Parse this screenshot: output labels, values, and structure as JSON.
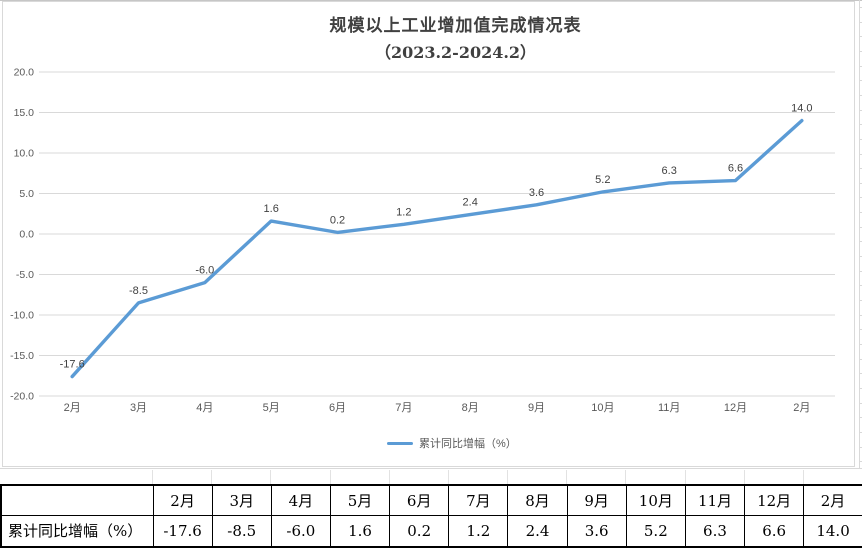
{
  "chart_data": {
    "type": "line",
    "title": "规模以上工业增加值完成情况表",
    "subtitle": "（2023.2-2024.2）",
    "categories": [
      "2月",
      "3月",
      "4月",
      "5月",
      "6月",
      "7月",
      "8月",
      "9月",
      "10月",
      "11月",
      "12月",
      "2月"
    ],
    "series": [
      {
        "name": "累计同比增幅（%）",
        "values": [
          -17.6,
          -8.5,
          -6.0,
          1.6,
          0.2,
          1.2,
          2.4,
          3.6,
          5.2,
          6.3,
          6.6,
          14.0
        ]
      }
    ],
    "data_labels": [
      "-17.6",
      "-8.5",
      "-6.0",
      "1.6",
      "0.2",
      "1.2",
      "2.4",
      "3.6",
      "5.2",
      "6.3",
      "6.6",
      "14.0"
    ],
    "ylim": [
      -20,
      20
    ],
    "ytick_step": 5,
    "y_ticks": [
      "20.0",
      "15.0",
      "10.0",
      "5.0",
      "0.0",
      "-5.0",
      "-10.0",
      "-15.0",
      "-20.0"
    ],
    "xlabel": "",
    "ylabel": "",
    "grid": true,
    "legend_position": "bottom",
    "line_color": "#5B9BD5",
    "gridline_color": "#D9D9D9",
    "label_color": "#404040",
    "tick_color": "#595959"
  },
  "legend": {
    "label": "累计同比增幅（%）"
  },
  "table": {
    "row_label": "累计同比增幅（%）",
    "columns": [
      "2月",
      "3月",
      "4月",
      "5月",
      "6月",
      "7月",
      "8月",
      "9月",
      "10月",
      "11月",
      "12月",
      "2月"
    ],
    "values": [
      "-17.6",
      "-8.5",
      "-6.0",
      "1.6",
      "0.2",
      "1.2",
      "2.4",
      "3.6",
      "5.2",
      "6.3",
      "6.6",
      "14.0"
    ]
  }
}
